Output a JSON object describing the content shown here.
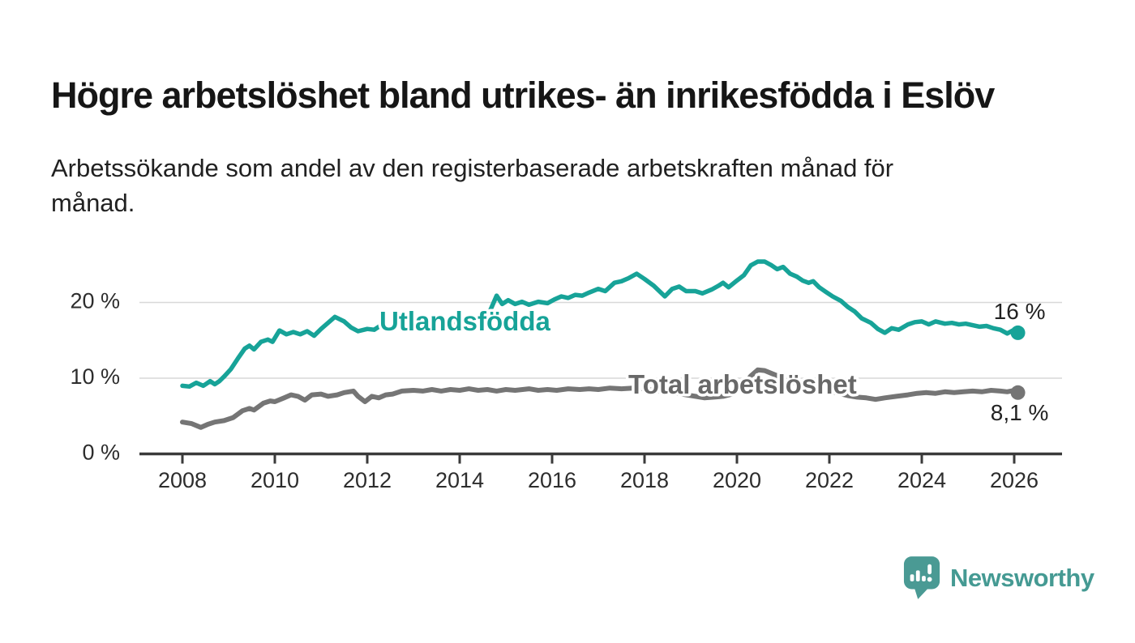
{
  "header": {
    "title": "Högre arbetslöshet bland utrikes- än inrikesfödda i Eslöv",
    "subtitle": "Arbetssökande som andel av den registerbaserade arbetskraften månad för månad."
  },
  "chart_data": {
    "type": "line",
    "title": "Högre arbetslöshet bland utrikes- än inrikesfödda i Eslöv",
    "subtitle": "Arbetssökande som andel av den registerbaserade arbetskraften månad för månad.",
    "xlabel": "",
    "ylabel": "",
    "grid": "horizontal",
    "x_range": [
      2007.1,
      2026.9
    ],
    "y_range": [
      0,
      27
    ],
    "x_ticks": [
      2008,
      2010,
      2012,
      2014,
      2016,
      2018,
      2020,
      2022,
      2024,
      2026
    ],
    "y_ticks": [
      {
        "value": 0,
        "label": "0 %"
      },
      {
        "value": 10,
        "label": "10 %"
      },
      {
        "value": 20,
        "label": "20 %"
      }
    ],
    "axis_color": "#3a3a3a",
    "grid_color": "#d8d8d8",
    "tick_label_color": "#2d2d2d",
    "series": [
      {
        "name": "Utlandsfödda",
        "color": "#17a398",
        "label_color": "#17a398",
        "end_label": "16 %",
        "end_value": 16.0,
        "points": [
          [
            2008.0,
            9.0
          ],
          [
            2008.15,
            8.9
          ],
          [
            2008.3,
            9.4
          ],
          [
            2008.45,
            9.0
          ],
          [
            2008.6,
            9.6
          ],
          [
            2008.7,
            9.2
          ],
          [
            2008.8,
            9.6
          ],
          [
            2008.9,
            10.2
          ],
          [
            2009.05,
            11.2
          ],
          [
            2009.2,
            12.6
          ],
          [
            2009.35,
            13.9
          ],
          [
            2009.45,
            14.3
          ],
          [
            2009.55,
            13.8
          ],
          [
            2009.7,
            14.8
          ],
          [
            2009.85,
            15.1
          ],
          [
            2009.95,
            14.8
          ],
          [
            2010.1,
            16.3
          ],
          [
            2010.25,
            15.8
          ],
          [
            2010.4,
            16.1
          ],
          [
            2010.55,
            15.8
          ],
          [
            2010.7,
            16.2
          ],
          [
            2010.85,
            15.6
          ],
          [
            2011.0,
            16.5
          ],
          [
            2011.15,
            17.3
          ],
          [
            2011.3,
            18.1
          ],
          [
            2011.5,
            17.5
          ],
          [
            2011.65,
            16.7
          ],
          [
            2011.8,
            16.2
          ],
          [
            2012.0,
            16.5
          ],
          [
            2012.15,
            16.4
          ],
          [
            2012.3,
            17.0
          ],
          [
            2012.5,
            16.5
          ],
          [
            2012.65,
            16.9
          ],
          [
            2012.8,
            16.7
          ],
          [
            2013.0,
            17.1
          ],
          [
            2013.15,
            17.0
          ],
          [
            2013.3,
            17.4
          ],
          [
            2013.5,
            17.2
          ],
          [
            2013.7,
            17.5
          ],
          [
            2013.9,
            17.3
          ],
          [
            2014.1,
            17.6
          ],
          [
            2014.3,
            17.4
          ],
          [
            2014.5,
            18.0
          ],
          [
            2014.65,
            18.8
          ],
          [
            2014.8,
            20.9
          ],
          [
            2014.92,
            19.8
          ],
          [
            2015.05,
            20.3
          ],
          [
            2015.2,
            19.8
          ],
          [
            2015.35,
            20.1
          ],
          [
            2015.5,
            19.7
          ],
          [
            2015.7,
            20.1
          ],
          [
            2015.9,
            19.9
          ],
          [
            2016.05,
            20.4
          ],
          [
            2016.2,
            20.8
          ],
          [
            2016.35,
            20.6
          ],
          [
            2016.5,
            21.0
          ],
          [
            2016.65,
            20.9
          ],
          [
            2016.8,
            21.3
          ],
          [
            2017.0,
            21.8
          ],
          [
            2017.15,
            21.5
          ],
          [
            2017.35,
            22.6
          ],
          [
            2017.5,
            22.8
          ],
          [
            2017.65,
            23.2
          ],
          [
            2017.83,
            23.8
          ],
          [
            2018.0,
            23.1
          ],
          [
            2018.2,
            22.2
          ],
          [
            2018.44,
            20.8
          ],
          [
            2018.6,
            21.8
          ],
          [
            2018.75,
            22.1
          ],
          [
            2018.9,
            21.5
          ],
          [
            2019.1,
            21.5
          ],
          [
            2019.25,
            21.2
          ],
          [
            2019.45,
            21.7
          ],
          [
            2019.6,
            22.2
          ],
          [
            2019.7,
            22.6
          ],
          [
            2019.82,
            22.0
          ],
          [
            2020.0,
            22.9
          ],
          [
            2020.15,
            23.6
          ],
          [
            2020.3,
            24.9
          ],
          [
            2020.45,
            25.4
          ],
          [
            2020.6,
            25.4
          ],
          [
            2020.75,
            24.9
          ],
          [
            2020.87,
            24.4
          ],
          [
            2021.0,
            24.7
          ],
          [
            2021.15,
            23.8
          ],
          [
            2021.3,
            23.4
          ],
          [
            2021.42,
            22.9
          ],
          [
            2021.55,
            22.6
          ],
          [
            2021.65,
            22.8
          ],
          [
            2021.78,
            22.0
          ],
          [
            2021.9,
            21.5
          ],
          [
            2022.07,
            20.8
          ],
          [
            2022.25,
            20.2
          ],
          [
            2022.4,
            19.4
          ],
          [
            2022.55,
            18.8
          ],
          [
            2022.7,
            17.9
          ],
          [
            2022.9,
            17.3
          ],
          [
            2023.05,
            16.5
          ],
          [
            2023.2,
            16.0
          ],
          [
            2023.35,
            16.6
          ],
          [
            2023.5,
            16.4
          ],
          [
            2023.7,
            17.1
          ],
          [
            2023.85,
            17.4
          ],
          [
            2024.0,
            17.5
          ],
          [
            2024.15,
            17.1
          ],
          [
            2024.3,
            17.5
          ],
          [
            2024.5,
            17.2
          ],
          [
            2024.65,
            17.3
          ],
          [
            2024.8,
            17.1
          ],
          [
            2024.95,
            17.2
          ],
          [
            2025.1,
            17.0
          ],
          [
            2025.25,
            16.8
          ],
          [
            2025.4,
            16.9
          ],
          [
            2025.55,
            16.6
          ],
          [
            2025.7,
            16.4
          ],
          [
            2025.85,
            15.9
          ],
          [
            2025.97,
            16.3
          ],
          [
            2026.08,
            16.0
          ]
        ]
      },
      {
        "name": "Total arbetslöshet",
        "color": "#757575",
        "label_color": "#686868",
        "end_label": "8,1 %",
        "end_value": 8.1,
        "points": [
          [
            2008.0,
            4.2
          ],
          [
            2008.2,
            4.0
          ],
          [
            2008.4,
            3.5
          ],
          [
            2008.55,
            3.9
          ],
          [
            2008.7,
            4.2
          ],
          [
            2008.9,
            4.4
          ],
          [
            2009.1,
            4.8
          ],
          [
            2009.3,
            5.7
          ],
          [
            2009.45,
            6.0
          ],
          [
            2009.55,
            5.8
          ],
          [
            2009.75,
            6.7
          ],
          [
            2009.9,
            7.0
          ],
          [
            2010.0,
            6.9
          ],
          [
            2010.2,
            7.4
          ],
          [
            2010.35,
            7.8
          ],
          [
            2010.5,
            7.6
          ],
          [
            2010.65,
            7.1
          ],
          [
            2010.8,
            7.8
          ],
          [
            2011.0,
            7.9
          ],
          [
            2011.15,
            7.6
          ],
          [
            2011.35,
            7.8
          ],
          [
            2011.5,
            8.1
          ],
          [
            2011.7,
            8.3
          ],
          [
            2011.8,
            7.6
          ],
          [
            2011.95,
            6.9
          ],
          [
            2012.1,
            7.6
          ],
          [
            2012.25,
            7.4
          ],
          [
            2012.4,
            7.8
          ],
          [
            2012.55,
            7.9
          ],
          [
            2012.75,
            8.3
          ],
          [
            2013.0,
            8.4
          ],
          [
            2013.2,
            8.3
          ],
          [
            2013.4,
            8.5
          ],
          [
            2013.6,
            8.3
          ],
          [
            2013.8,
            8.5
          ],
          [
            2014.0,
            8.4
          ],
          [
            2014.2,
            8.6
          ],
          [
            2014.4,
            8.4
          ],
          [
            2014.6,
            8.5
          ],
          [
            2014.8,
            8.3
          ],
          [
            2015.0,
            8.5
          ],
          [
            2015.2,
            8.4
          ],
          [
            2015.5,
            8.6
          ],
          [
            2015.7,
            8.4
          ],
          [
            2015.9,
            8.5
          ],
          [
            2016.1,
            8.4
          ],
          [
            2016.35,
            8.6
          ],
          [
            2016.6,
            8.5
          ],
          [
            2016.8,
            8.6
          ],
          [
            2017.0,
            8.5
          ],
          [
            2017.25,
            8.7
          ],
          [
            2017.5,
            8.6
          ],
          [
            2017.75,
            8.7
          ],
          [
            2018.0,
            8.6
          ],
          [
            2018.2,
            8.4
          ],
          [
            2018.45,
            8.2
          ],
          [
            2018.7,
            8.0
          ],
          [
            2018.9,
            7.8
          ],
          [
            2019.1,
            7.6
          ],
          [
            2019.3,
            7.4
          ],
          [
            2019.5,
            7.5
          ],
          [
            2019.7,
            7.6
          ],
          [
            2019.9,
            7.9
          ],
          [
            2020.1,
            8.7
          ],
          [
            2020.3,
            10.3
          ],
          [
            2020.45,
            11.1
          ],
          [
            2020.6,
            11.0
          ],
          [
            2020.8,
            10.5
          ],
          [
            2021.0,
            10.0
          ],
          [
            2021.2,
            9.5
          ],
          [
            2021.4,
            9.1
          ],
          [
            2021.6,
            8.8
          ],
          [
            2021.8,
            8.5
          ],
          [
            2022.0,
            8.3
          ],
          [
            2022.2,
            8.0
          ],
          [
            2022.4,
            7.7
          ],
          [
            2022.6,
            7.5
          ],
          [
            2022.8,
            7.4
          ],
          [
            2023.0,
            7.2
          ],
          [
            2023.2,
            7.4
          ],
          [
            2023.45,
            7.6
          ],
          [
            2023.7,
            7.8
          ],
          [
            2023.9,
            8.0
          ],
          [
            2024.1,
            8.1
          ],
          [
            2024.3,
            8.0
          ],
          [
            2024.5,
            8.2
          ],
          [
            2024.7,
            8.1
          ],
          [
            2024.9,
            8.2
          ],
          [
            2025.1,
            8.3
          ],
          [
            2025.3,
            8.2
          ],
          [
            2025.5,
            8.4
          ],
          [
            2025.7,
            8.3
          ],
          [
            2025.85,
            8.2
          ],
          [
            2026.0,
            8.4
          ],
          [
            2026.08,
            8.1
          ]
        ]
      }
    ]
  },
  "branding": {
    "logo_text": "Newsworthy",
    "logo_color": "#459a93",
    "logo_icon": "speech-bubble-bar-chart"
  }
}
